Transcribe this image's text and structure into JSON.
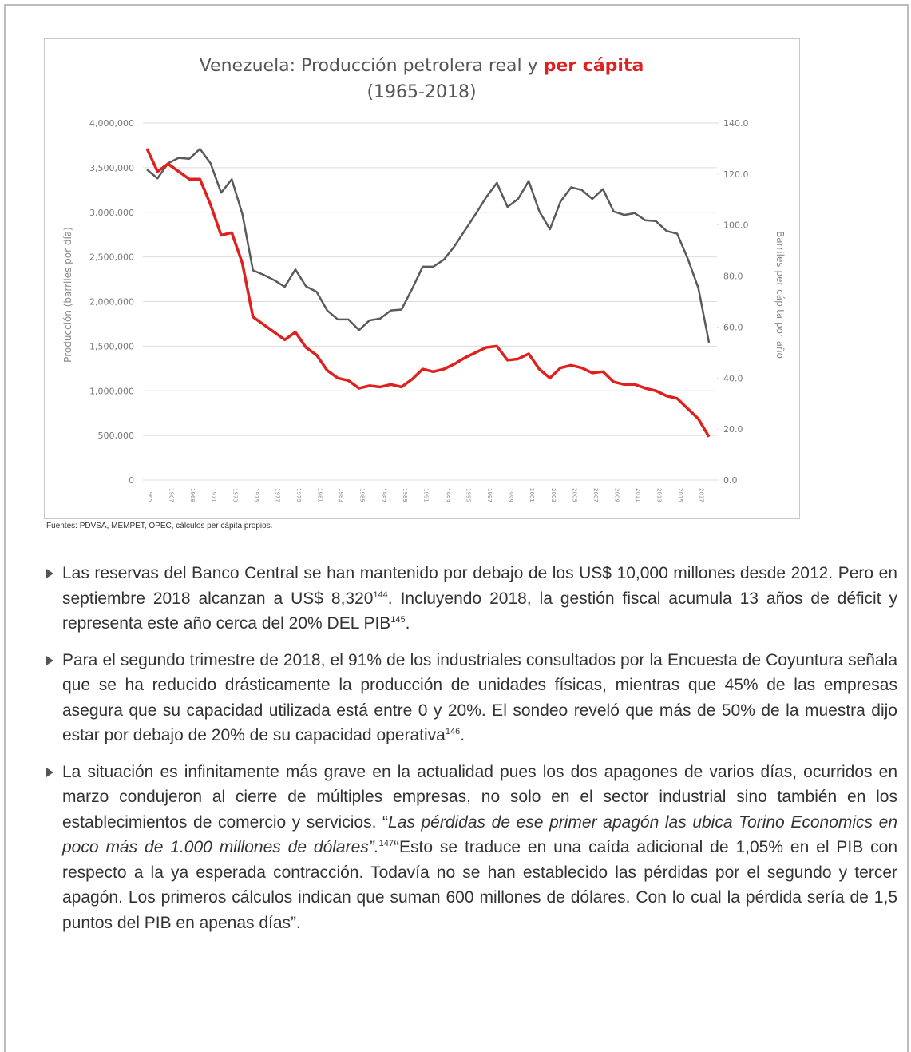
{
  "chart_data": {
    "type": "line",
    "title": [
      "Venezuela: Producción petrolera real y ",
      "per cápita",
      "(1965-2018)"
    ],
    "ylabel": "Producción (barriles por día)",
    "y2label": "Barriles per cápita por año",
    "source": "Fuentes: PDVSA, MEMPET, OPEC, cálculos per cápita propios.",
    "categories": [
      "1965",
      null,
      "1967",
      null,
      "1969",
      null,
      "1971",
      null,
      "1973",
      null,
      "1975",
      null,
      "1977",
      null,
      "1979",
      null,
      "1981",
      null,
      "1983",
      null,
      "1985",
      null,
      "1987",
      null,
      "1989",
      null,
      "1991",
      null,
      "1993",
      null,
      "1995",
      null,
      "1997",
      null,
      "1999",
      null,
      "2001",
      null,
      "2003",
      null,
      "2005",
      null,
      "2007",
      null,
      "2009",
      null,
      "2011",
      null,
      "2013",
      null,
      "2015",
      null,
      "2017",
      null
    ],
    "ylim": [
      0,
      4000000
    ],
    "yticks": [
      {
        "value": 0,
        "label": "0"
      },
      {
        "value": 500000,
        "label": "500,000"
      },
      {
        "value": 1000000,
        "label": "1,000,000"
      },
      {
        "value": 1500000,
        "label": "1,500,000"
      },
      {
        "value": 2000000,
        "label": "2,000,000"
      },
      {
        "value": 2500000,
        "label": "2,500,000"
      },
      {
        "value": 3000000,
        "label": "3,000,000"
      },
      {
        "value": 3500000,
        "label": "3,500,000"
      },
      {
        "value": 4000000,
        "label": "4,000,000"
      }
    ],
    "y2lim": [
      0,
      140
    ],
    "y2ticks": [
      {
        "value": 0,
        "label": "0.0"
      },
      {
        "value": 20,
        "label": "20.0"
      },
      {
        "value": 40,
        "label": "40.0"
      },
      {
        "value": 60,
        "label": "60.0"
      },
      {
        "value": 80,
        "label": "80.0"
      },
      {
        "value": 100,
        "label": "100.0"
      },
      {
        "value": 120,
        "label": "120.0"
      },
      {
        "value": 140,
        "label": "140.0"
      }
    ],
    "grid": true,
    "series": [
      {
        "color": "#5a5a5a",
        "values": [
          3480000,
          3380000,
          3550000,
          3610000,
          3600000,
          3710000,
          3550000,
          3220000,
          3370000,
          2980000,
          2350000,
          2300000,
          2240000,
          2165000,
          2360000,
          2170000,
          2110000,
          1900000,
          1800000,
          1800000,
          1680000,
          1790000,
          1810000,
          1900000,
          1910000,
          2140000,
          2390000,
          2390000,
          2470000,
          2620000,
          2800000,
          2980000,
          3170000,
          3330000,
          3060000,
          3150000,
          3350000,
          3010000,
          2810000,
          3120000,
          3280000,
          3250000,
          3150000,
          3260000,
          3010000,
          2970000,
          2990000,
          2910000,
          2900000,
          2790000,
          2760000,
          2480000,
          2150000,
          1540000
        ]
      },
      {
        "color": "#e0201e",
        "axis": "y2",
        "values": [
          130,
          121,
          124,
          121,
          118,
          118,
          108,
          96,
          97,
          85,
          64,
          61,
          58,
          55,
          58,
          52,
          49,
          43,
          40,
          39,
          36,
          37,
          36.5,
          37.5,
          36.5,
          39.5,
          43.5,
          42.5,
          43.5,
          45.5,
          48,
          50,
          52,
          52.5,
          47,
          47.5,
          49.5,
          43.5,
          40,
          44,
          45,
          44,
          42,
          42.5,
          38.5,
          37.5,
          37.5,
          36,
          35,
          33,
          32,
          28,
          24,
          17
        ]
      }
    ]
  },
  "document": {
    "bullets": [
      [
        "Las reservas del Banco Central se han mantenido por debajo de los US$ 10,000 millones desde 2012. Pero en septiembre 2018 alcanzan a US$ 8,320",
        {
          "sup": "144"
        },
        ". Incluyendo 2018, la gestión fiscal acumula 13 años de déficit y representa este año cerca del 20% DEL PIB",
        {
          "sup": "145"
        },
        "."
      ],
      [
        "Para el segundo trimestre de 2018, el 91% de los industriales consultados por la Encuesta de Coyuntura señala que se ha reducido drásticamente la producción de unidades físicas, mientras que 45% de las empresas asegura que su capacidad utilizada está entre 0 y 20%. El sondeo reveló que más de 50% de la muestra dijo estar por debajo de 20% de su capacidad operativa",
        {
          "sup": "146"
        },
        "."
      ],
      [
        "La situación es infinitamente más grave en la actualidad pues los dos apagones de varios días, ocurridos en marzo condujeron al cierre de múltiples empresas, no solo en el sector industrial sino también en los establecimientos de comercio y servicios. “",
        {
          "italic": "Las pérdidas de ese primer apagón las ubica Torino Economics en poco más de 1.000 millones de dólares”."
        },
        {
          "sup": "147"
        },
        "“Esto se traduce en una caída adicional de 1,05% en el PIB con respecto a la ya esperada contracción. Todavía no se han establecido las pérdidas por el segundo y tercer apagón. Los primeros cálculos indican que suman 600 millones de dólares. Con lo cual la pérdida sería de 1,5 puntos del PIB en apenas días”."
      ]
    ]
  }
}
